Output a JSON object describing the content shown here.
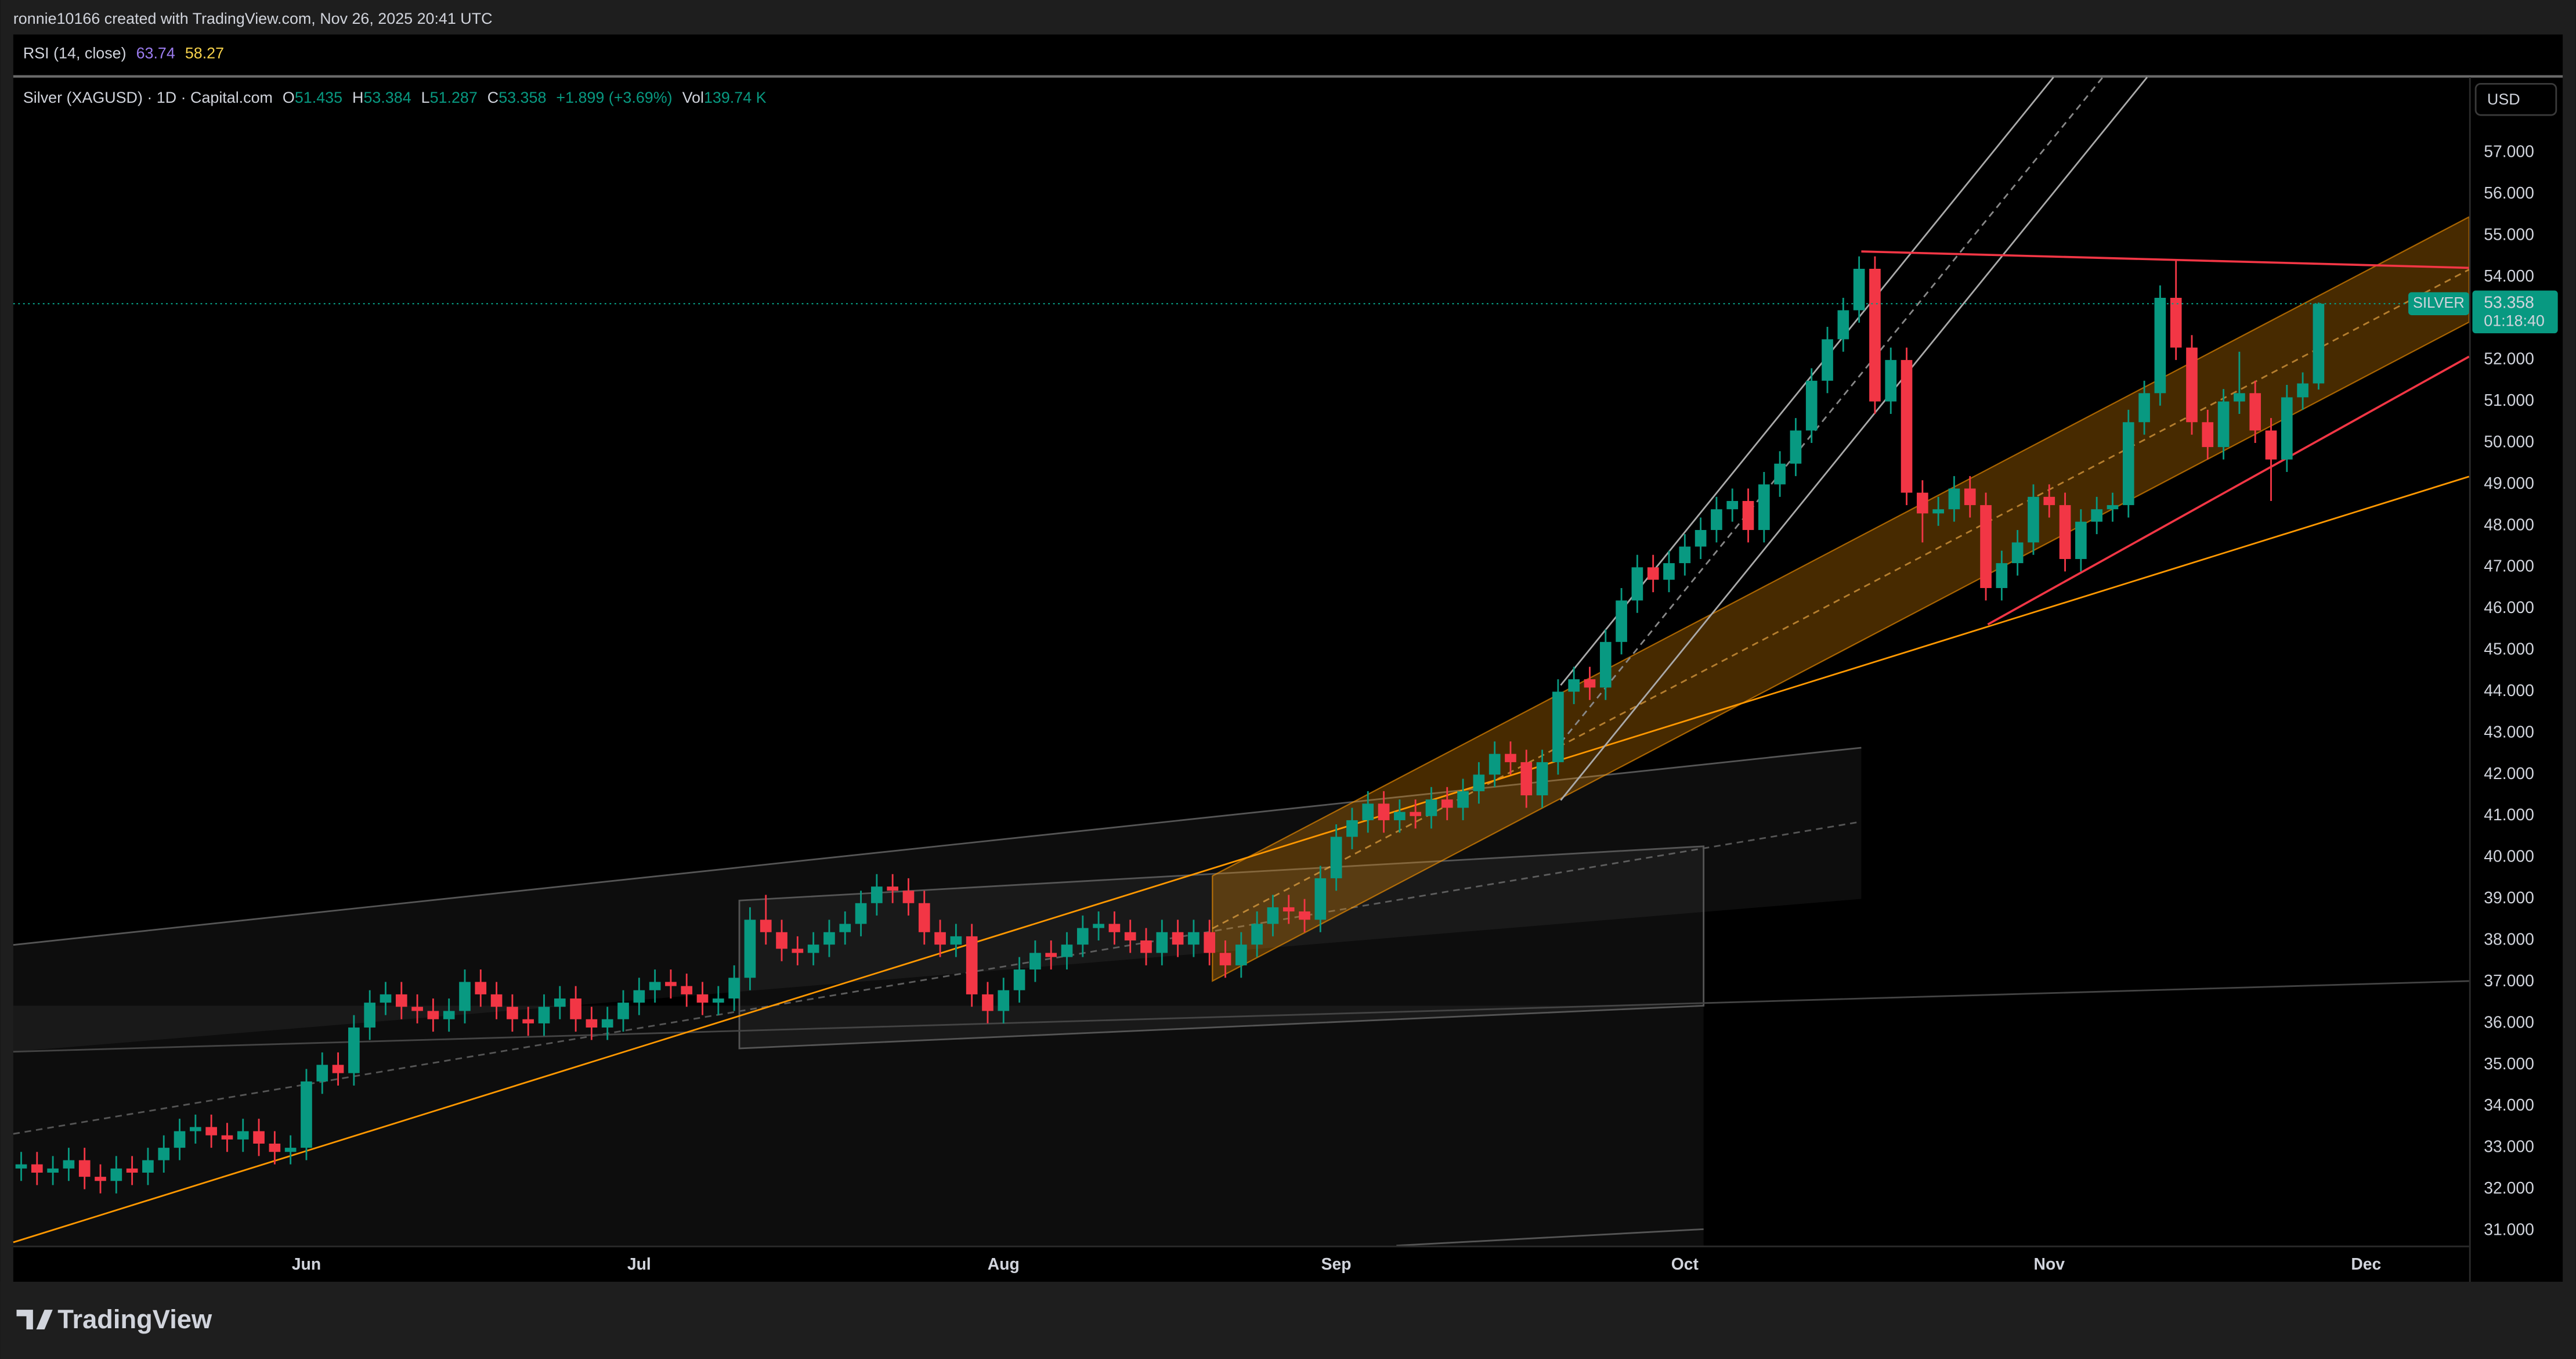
{
  "header": {
    "attribution": "ronnie10166 created with TradingView.com, Nov 26, 2025 20:41 UTC"
  },
  "rsi": {
    "label": "RSI (14, close)",
    "value": 63.74,
    "signal": 58.27
  },
  "legend": {
    "symbol": "Silver (XAGUSD) · 1D · Capital.com",
    "open_label": "O",
    "open": 51.435,
    "high_label": "H",
    "high": 53.384,
    "low_label": "L",
    "low": 51.287,
    "close_label": "C",
    "close": 53.358,
    "change": "+1.899 (+3.69%)",
    "volume_label": "Vol",
    "volume": "139.74 K"
  },
  "currency": "USD",
  "price_tag": {
    "symbol": "SILVER",
    "price": 53.358,
    "countdown": "01:18:40"
  },
  "footer": {
    "logo": "TradingView"
  },
  "chart_data": {
    "type": "candlestick",
    "up_color": "#089981",
    "down_color": "#f23645",
    "grid": false,
    "ylim": [
      30.64,
      58.82
    ],
    "yticks": [
      {
        "value": 31,
        "label": "31.000"
      },
      {
        "value": 32,
        "label": "32.000"
      },
      {
        "value": 33,
        "label": "33.000"
      },
      {
        "value": 34,
        "label": "34.000"
      },
      {
        "value": 35,
        "label": "35.000"
      },
      {
        "value": 36,
        "label": "36.000"
      },
      {
        "value": 37,
        "label": "37.000"
      },
      {
        "value": 38,
        "label": "38.000"
      },
      {
        "value": 39,
        "label": "39.000"
      },
      {
        "value": 40,
        "label": "40.000"
      },
      {
        "value": 41,
        "label": "41.000"
      },
      {
        "value": 42,
        "label": "42.000"
      },
      {
        "value": 43,
        "label": "43.000"
      },
      {
        "value": 44,
        "label": "44.000"
      },
      {
        "value": 45,
        "label": "45.000"
      },
      {
        "value": 46,
        "label": "46.000"
      },
      {
        "value": 47,
        "label": "47.000"
      },
      {
        "value": 48,
        "label": "48.000"
      },
      {
        "value": 49,
        "label": "49.000"
      },
      {
        "value": 50,
        "label": "50.000"
      },
      {
        "value": 51,
        "label": "51.000"
      },
      {
        "value": 52,
        "label": "52.000"
      },
      {
        "value": 54,
        "label": "54.000"
      },
      {
        "value": 55,
        "label": "55.000"
      },
      {
        "value": 56,
        "label": "56.000"
      },
      {
        "value": 57,
        "label": "57.000"
      }
    ],
    "categories": [
      null,
      null,
      null,
      null,
      null,
      null,
      null,
      null,
      null,
      null,
      null,
      null,
      null,
      null,
      null,
      null,
      null,
      null,
      "Jun",
      null,
      null,
      null,
      null,
      null,
      null,
      null,
      null,
      null,
      null,
      null,
      null,
      null,
      null,
      null,
      null,
      null,
      null,
      null,
      null,
      "Jul",
      null,
      null,
      null,
      null,
      null,
      null,
      null,
      null,
      null,
      null,
      null,
      null,
      null,
      null,
      null,
      null,
      null,
      null,
      null,
      null,
      null,
      null,
      "Aug",
      null,
      null,
      null,
      null,
      null,
      null,
      null,
      null,
      null,
      null,
      null,
      null,
      null,
      null,
      null,
      null,
      null,
      null,
      null,
      null,
      "Sep",
      null,
      null,
      null,
      null,
      null,
      null,
      null,
      null,
      null,
      null,
      null,
      null,
      null,
      null,
      null,
      null,
      null,
      null,
      null,
      null,
      null,
      "Oct",
      null,
      null,
      null,
      null,
      null,
      null,
      null,
      null,
      null,
      null,
      null,
      null,
      null,
      null,
      null,
      null,
      null,
      null,
      null,
      null,
      null,
      null,
      "Nov",
      null,
      null,
      null,
      null,
      null,
      null,
      null,
      null,
      null,
      null,
      null,
      null,
      null,
      null,
      null,
      null,
      null,
      null,
      null,
      "Dec",
      null,
      null,
      null,
      null,
      null,
      null
    ],
    "open": [
      32.5,
      32.6,
      32.4,
      32.5,
      32.7,
      32.3,
      32.2,
      32.5,
      32.4,
      32.7,
      33.0,
      33.4,
      33.5,
      33.3,
      33.2,
      33.4,
      33.1,
      32.9,
      33.0,
      34.6,
      35.0,
      34.8,
      35.9,
      36.5,
      36.7,
      36.4,
      36.3,
      36.1,
      36.3,
      37.0,
      36.7,
      36.4,
      36.1,
      36.0,
      36.4,
      36.6,
      36.1,
      35.9,
      36.1,
      36.5,
      36.8,
      37.0,
      36.9,
      36.7,
      36.5,
      36.6,
      37.1,
      38.5,
      38.2,
      37.8,
      37.7,
      37.9,
      38.2,
      38.4,
      38.9,
      39.3,
      39.2,
      38.9,
      38.2,
      37.9,
      38.1,
      36.7,
      36.3,
      36.8,
      37.3,
      37.7,
      37.6,
      37.9,
      38.3,
      38.4,
      38.2,
      38.0,
      37.7,
      38.2,
      37.9,
      38.2,
      37.7,
      37.4,
      37.9,
      38.4,
      38.8,
      38.7,
      38.5,
      39.5,
      40.5,
      40.9,
      41.3,
      40.9,
      41.1,
      41.0,
      41.4,
      41.2,
      41.6,
      42.0,
      42.5,
      42.3,
      41.5,
      42.3,
      44.0,
      44.3,
      44.1,
      45.2,
      46.2,
      47.0,
      46.7,
      47.1,
      47.5,
      47.9,
      48.4,
      48.6,
      47.9,
      49.0,
      49.5,
      50.3,
      51.5,
      52.5,
      53.2,
      54.2,
      51.0,
      52.0,
      48.8,
      48.3,
      48.4,
      48.9,
      48.5,
      46.5,
      47.1,
      47.6,
      48.7,
      48.5,
      47.2,
      48.1,
      48.4,
      48.5,
      50.5,
      51.2,
      53.5,
      52.3,
      50.5,
      49.9,
      51.0,
      51.2,
      50.3,
      49.6,
      51.1,
      51.435,
      null,
      null,
      null,
      null,
      null,
      null,
      null,
      null,
      null
    ],
    "high": [
      32.9,
      32.9,
      32.8,
      33.0,
      33.0,
      32.6,
      32.8,
      32.8,
      33.0,
      33.3,
      33.7,
      33.8,
      33.8,
      33.6,
      33.7,
      33.7,
      33.4,
      33.3,
      34.9,
      35.3,
      35.3,
      36.2,
      36.8,
      37.0,
      37.0,
      36.7,
      36.6,
      36.6,
      37.3,
      37.3,
      37.0,
      36.7,
      36.4,
      36.7,
      36.9,
      36.9,
      36.4,
      36.4,
      36.8,
      37.1,
      37.3,
      37.3,
      37.2,
      37.0,
      36.9,
      37.4,
      38.8,
      39.1,
      38.5,
      38.1,
      38.2,
      38.5,
      38.7,
      39.2,
      39.6,
      39.6,
      39.5,
      39.2,
      38.5,
      38.4,
      38.4,
      37.0,
      37.1,
      37.6,
      38.0,
      38.0,
      38.2,
      38.6,
      38.7,
      38.7,
      38.5,
      38.3,
      38.5,
      38.5,
      38.5,
      38.5,
      38.0,
      38.2,
      38.7,
      39.1,
      39.1,
      39.0,
      39.8,
      40.8,
      41.2,
      41.6,
      41.6,
      41.4,
      41.4,
      41.7,
      41.7,
      41.9,
      42.3,
      42.8,
      42.8,
      42.6,
      42.6,
      44.3,
      44.6,
      44.6,
      45.5,
      46.5,
      47.3,
      47.3,
      47.4,
      47.8,
      48.2,
      48.7,
      48.9,
      48.9,
      49.3,
      49.8,
      50.6,
      51.8,
      52.8,
      53.5,
      54.5,
      54.5,
      52.3,
      52.3,
      49.1,
      48.7,
      49.2,
      49.2,
      48.8,
      47.4,
      47.9,
      49.0,
      49.0,
      48.8,
      48.4,
      48.7,
      48.8,
      50.8,
      51.5,
      53.8,
      54.4,
      52.6,
      50.8,
      51.3,
      52.2,
      51.5,
      50.6,
      51.4,
      51.7,
      53.384,
      null,
      null,
      null,
      null,
      null,
      null,
      null,
      null,
      null
    ],
    "low": [
      32.2,
      32.1,
      32.1,
      32.2,
      32.0,
      31.9,
      31.9,
      32.1,
      32.1,
      32.4,
      32.7,
      33.1,
      33.0,
      32.9,
      32.9,
      32.8,
      32.6,
      32.6,
      32.7,
      34.3,
      34.5,
      34.5,
      35.6,
      36.2,
      36.1,
      36.0,
      35.8,
      35.8,
      36.0,
      36.4,
      36.1,
      35.8,
      35.7,
      35.7,
      36.1,
      35.8,
      35.6,
      35.6,
      35.8,
      36.2,
      36.5,
      36.6,
      36.4,
      36.2,
      36.2,
      36.3,
      36.8,
      37.9,
      37.5,
      37.4,
      37.4,
      37.6,
      37.9,
      38.1,
      38.6,
      38.9,
      38.6,
      37.9,
      37.6,
      37.6,
      36.4,
      36.0,
      36.0,
      36.5,
      37.0,
      37.3,
      37.3,
      37.6,
      38.0,
      37.9,
      37.7,
      37.4,
      37.4,
      37.6,
      37.6,
      37.4,
      37.1,
      37.1,
      37.6,
      38.1,
      38.4,
      38.2,
      38.2,
      39.2,
      40.2,
      40.6,
      40.6,
      40.6,
      40.7,
      40.7,
      40.9,
      40.9,
      41.3,
      41.7,
      42.0,
      41.2,
      41.2,
      42.0,
      43.7,
      43.8,
      43.8,
      44.9,
      45.9,
      46.4,
      46.4,
      46.8,
      47.2,
      47.6,
      48.1,
      47.6,
      47.6,
      48.7,
      49.2,
      50.0,
      51.2,
      52.2,
      52.9,
      50.7,
      50.7,
      48.5,
      47.6,
      48.0,
      48.1,
      48.2,
      46.2,
      46.2,
      46.8,
      47.3,
      48.2,
      46.9,
      46.9,
      47.8,
      48.1,
      48.2,
      50.2,
      50.9,
      52.0,
      50.2,
      49.6,
      49.6,
      50.7,
      50.0,
      48.6,
      49.3,
      50.8,
      51.287,
      null,
      null,
      null,
      null,
      null,
      null,
      null,
      null,
      null
    ],
    "close": [
      32.6,
      32.4,
      32.5,
      32.7,
      32.3,
      32.2,
      32.5,
      32.4,
      32.7,
      33.0,
      33.4,
      33.5,
      33.3,
      33.2,
      33.4,
      33.1,
      32.9,
      33.0,
      34.6,
      35.0,
      34.8,
      35.9,
      36.5,
      36.7,
      36.4,
      36.3,
      36.1,
      36.3,
      37.0,
      36.7,
      36.4,
      36.1,
      36.0,
      36.4,
      36.6,
      36.1,
      35.9,
      36.1,
      36.5,
      36.8,
      37.0,
      36.9,
      36.7,
      36.5,
      36.6,
      37.1,
      38.5,
      38.2,
      37.8,
      37.7,
      37.9,
      38.2,
      38.4,
      38.9,
      39.3,
      39.2,
      38.9,
      38.2,
      37.9,
      38.1,
      36.7,
      36.3,
      36.8,
      37.3,
      37.7,
      37.6,
      37.9,
      38.3,
      38.4,
      38.2,
      38.0,
      37.7,
      38.2,
      37.9,
      38.2,
      37.7,
      37.4,
      37.9,
      38.4,
      38.8,
      38.7,
      38.5,
      39.5,
      40.5,
      40.9,
      41.3,
      40.9,
      41.1,
      41.0,
      41.4,
      41.2,
      41.6,
      42.0,
      42.5,
      42.3,
      41.5,
      42.3,
      44.0,
      44.3,
      44.1,
      45.2,
      46.2,
      47.0,
      46.7,
      47.1,
      47.5,
      47.9,
      48.4,
      48.6,
      47.9,
      49.0,
      49.5,
      50.3,
      51.5,
      52.5,
      53.2,
      54.2,
      51.0,
      52.0,
      48.8,
      48.3,
      48.4,
      48.9,
      48.5,
      46.5,
      47.1,
      47.6,
      48.7,
      48.5,
      47.2,
      48.1,
      48.4,
      48.5,
      50.5,
      51.2,
      53.5,
      52.3,
      50.5,
      49.9,
      51.0,
      51.2,
      50.3,
      49.6,
      51.1,
      51.435,
      53.358,
      null,
      null,
      null,
      null,
      null,
      null,
      null,
      null,
      null
    ]
  }
}
